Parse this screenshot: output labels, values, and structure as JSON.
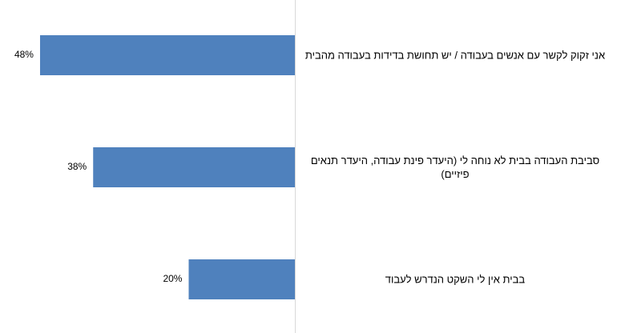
{
  "chart_data": {
    "type": "bar",
    "orientation": "horizontal",
    "categories": [
      "אני זקוק לקשר עם אנשים בעבודה / יש תחושת בדידות בעבודה מהבית",
      "סביבת העבודה בבית לא נוחה לי (היעדר פינת עבודה, היעדר תנאים פיזיים)",
      "בבית אין לי השקט הנדרש לעבוד"
    ],
    "values": [
      48,
      38,
      20
    ],
    "value_labels": [
      "48%",
      "38%",
      "20%"
    ],
    "color": "#4f81bd",
    "xlim": [
      0,
      55
    ]
  }
}
